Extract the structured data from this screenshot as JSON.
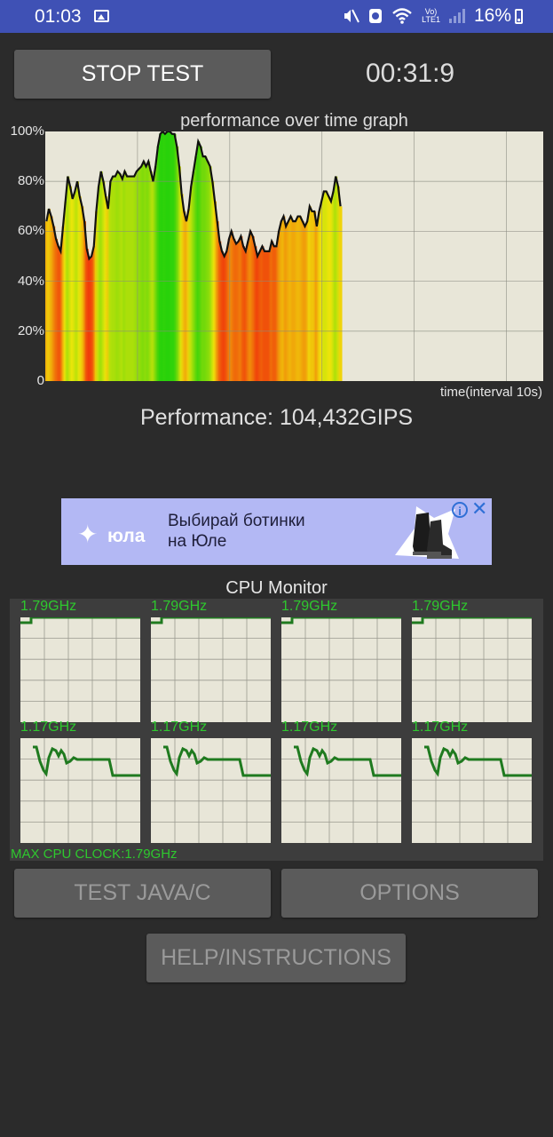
{
  "status_bar": {
    "time": "01:03",
    "lte_top": "Vo)",
    "lte_bottom": "LTE1",
    "battery": "16%"
  },
  "controls": {
    "stop_test_label": "STOP TEST",
    "timer": "00:31:9",
    "test_java_label": "TEST JAVA/C",
    "options_label": "OPTIONS",
    "help_label": "HELP/INSTRUCTIONS"
  },
  "graph": {
    "title": "performance over time graph",
    "y_ticks": [
      "100%",
      "80%",
      "60%",
      "40%",
      "20%",
      "0"
    ],
    "x_label": "time(interval 10s)",
    "performance_text": "Performance: 104,432GIPS"
  },
  "ad": {
    "brand": "юла",
    "text_line1": "Выбирай ботинки",
    "text_line2": "на Юле",
    "info_icon": "i",
    "close_icon": "✕"
  },
  "cpu_monitor": {
    "title": "CPU Monitor",
    "top_row_labels": [
      "1.79GHz",
      "1.79GHz",
      "1.79GHz",
      "1.79GHz"
    ],
    "bottom_row_labels": [
      "1.17GHz",
      "1.17GHz",
      "1.17GHz",
      "1.17GHz"
    ],
    "max_clock": "MAX CPU CLOCK:1.79GHz"
  },
  "chart_data": {
    "type": "area",
    "title": "performance over time graph",
    "xlabel": "time(interval 10s)",
    "ylabel": "",
    "ylim": [
      0,
      100
    ],
    "y_unit": "%",
    "values": [
      64,
      69,
      66,
      62,
      57,
      54,
      52,
      62,
      72,
      82,
      78,
      73,
      76,
      80,
      74,
      70,
      64,
      53,
      49,
      50,
      54,
      68,
      78,
      84,
      80,
      74,
      69,
      80,
      82,
      82,
      84,
      83,
      81,
      84,
      82,
      82,
      82,
      82,
      84,
      85,
      86,
      88,
      86,
      88,
      84,
      80,
      86,
      94,
      99,
      100,
      99,
      100,
      100,
      99,
      99,
      94,
      86,
      75,
      68,
      64,
      69,
      78,
      84,
      90,
      96,
      94,
      90,
      90,
      88,
      86,
      80,
      72,
      64,
      56,
      52,
      50,
      52,
      57,
      60,
      57,
      55,
      56,
      58,
      54,
      52,
      56,
      60,
      58,
      54,
      50,
      52,
      54,
      52,
      52,
      52,
      56,
      54,
      54,
      60,
      64,
      66,
      62,
      64,
      66,
      64,
      64,
      66,
      66,
      64,
      62,
      64,
      70,
      68,
      68,
      62,
      68,
      72,
      76,
      76,
      74,
      72,
      76,
      82,
      78,
      70
    ],
    "grid": true
  }
}
